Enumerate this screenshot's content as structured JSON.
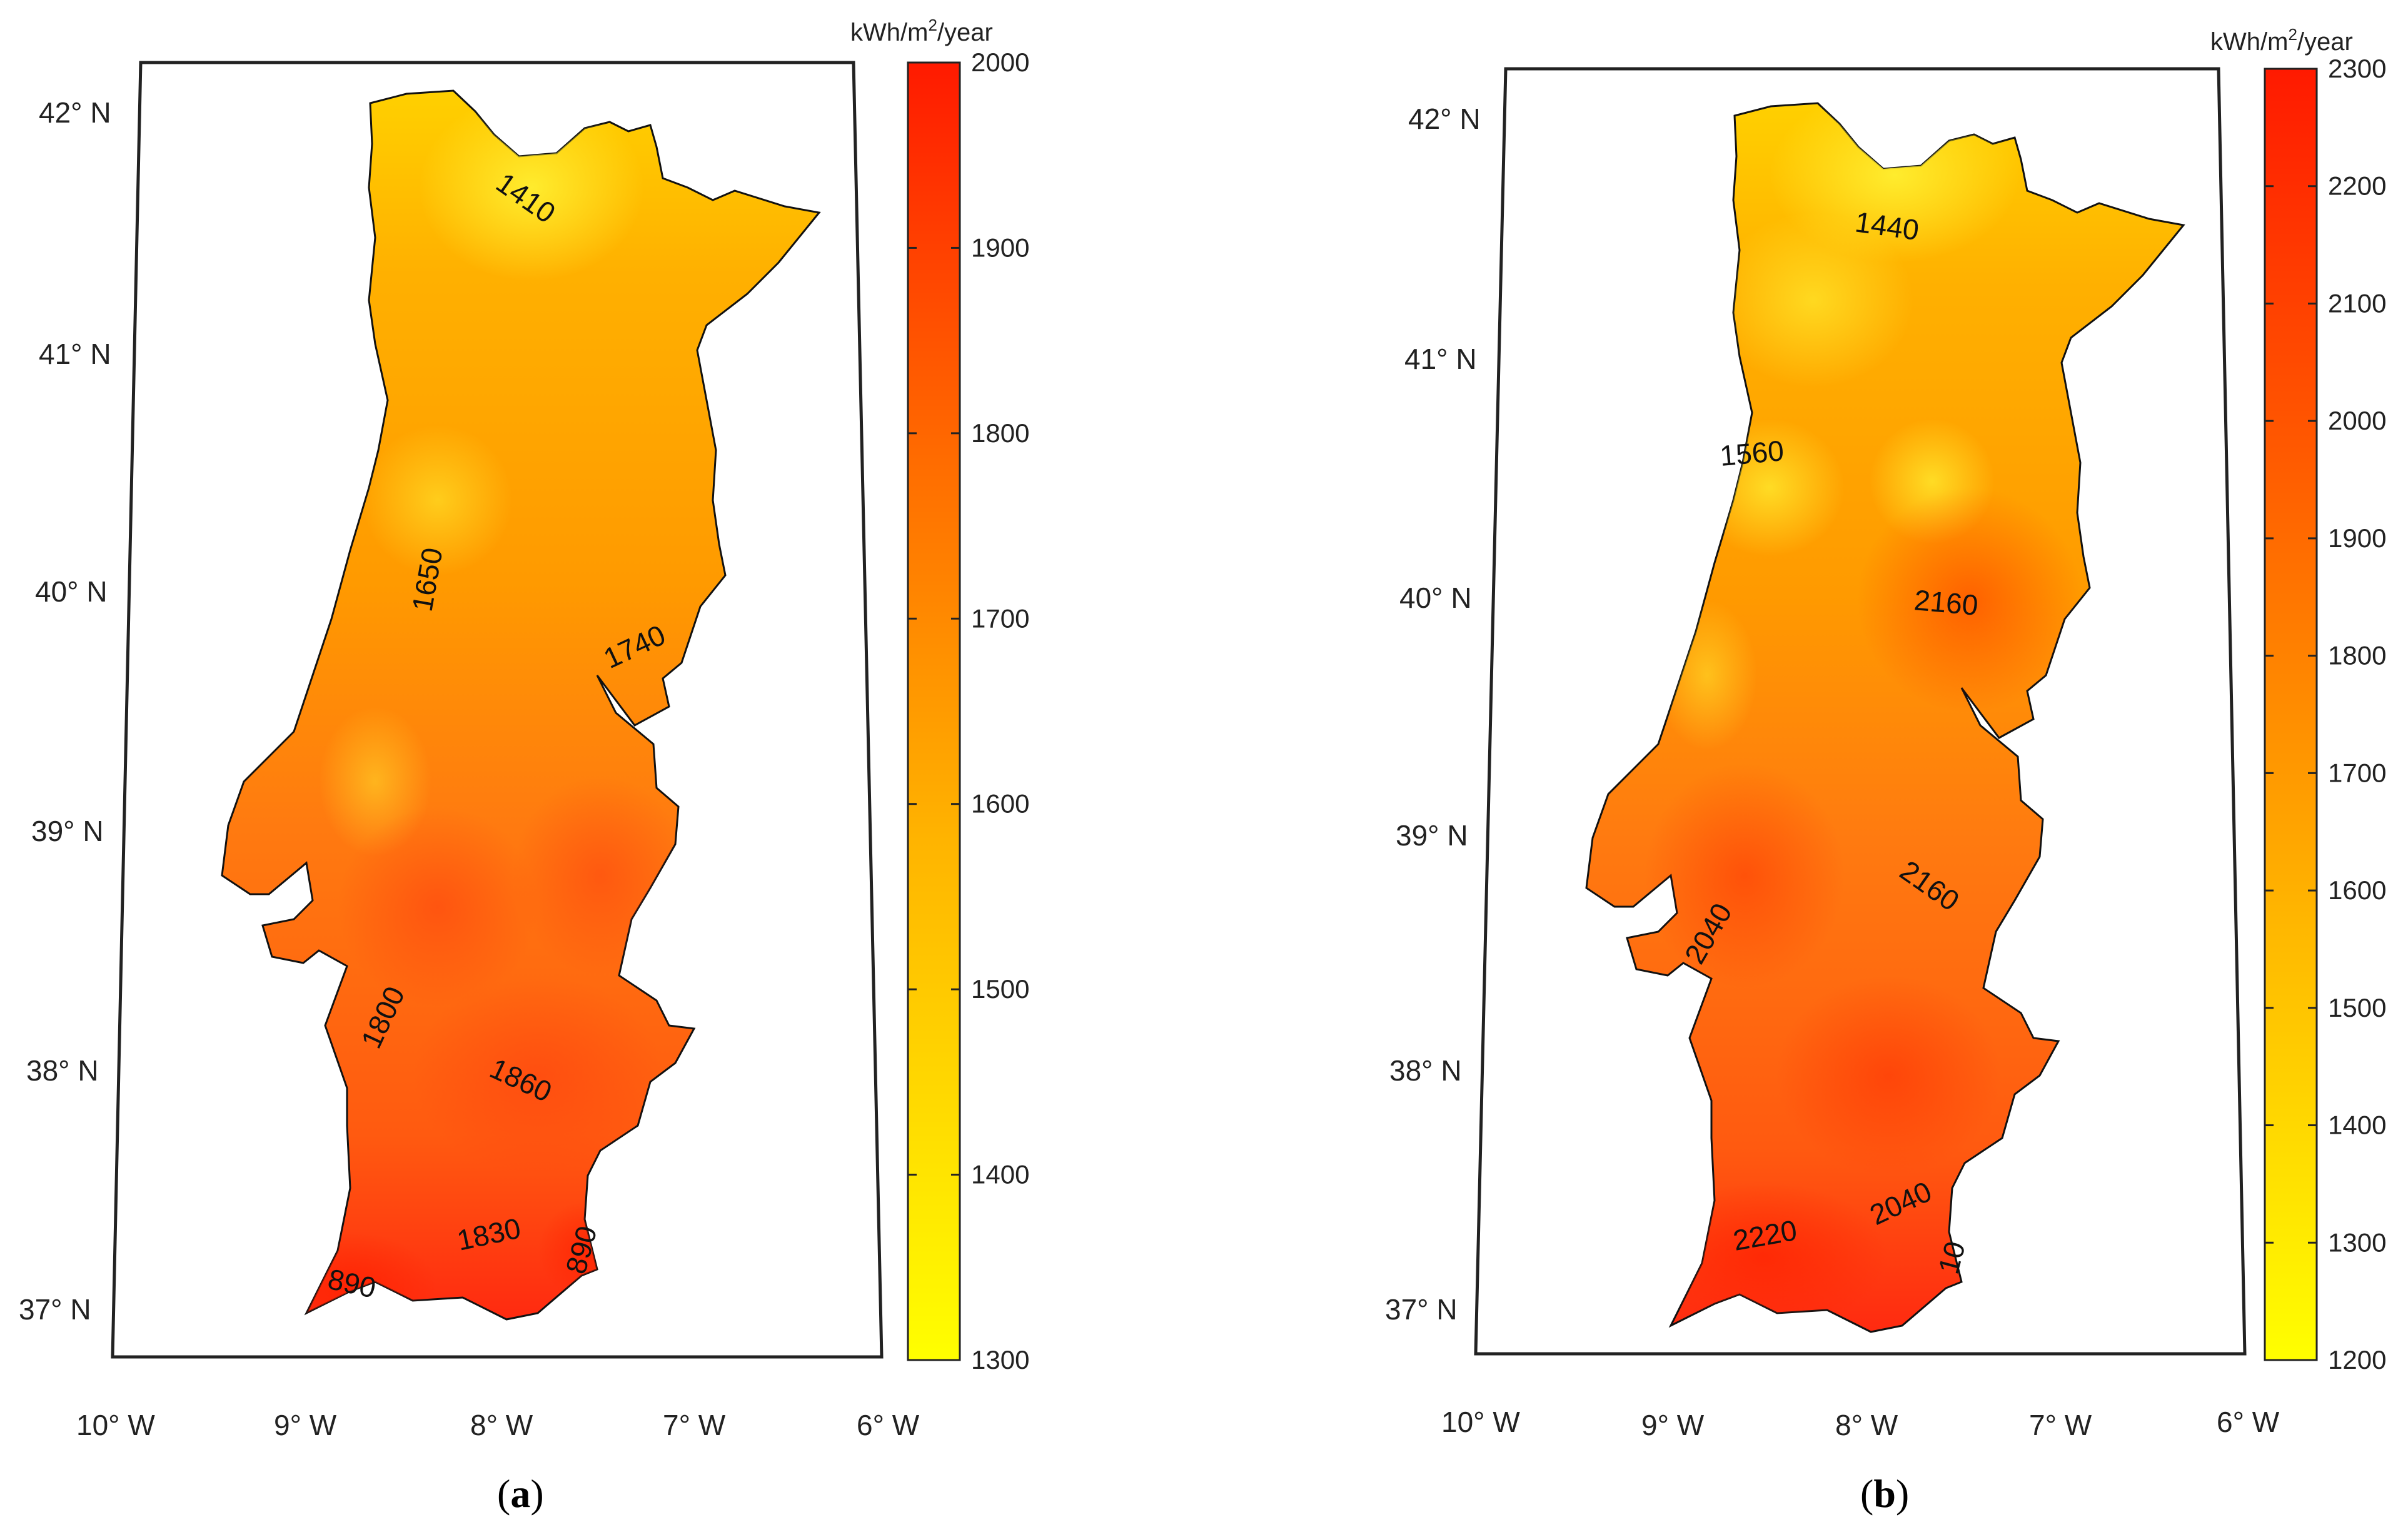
{
  "colors": {
    "low": "#ffff00",
    "high": "#ff1a00",
    "outline": "#111111"
  },
  "panels": [
    {
      "caption_letter": "a",
      "colorbar": {
        "unit_prefix": "kWh/m",
        "unit_sup": "2",
        "unit_suffix": "/year",
        "min": 1300,
        "max": 2000,
        "ticks": [
          "2000",
          "1900",
          "1800",
          "1700",
          "1600",
          "1500",
          "1400",
          "1300"
        ]
      },
      "lat_labels": [
        "42° N",
        "41° N",
        "40° N",
        "39° N",
        "38° N",
        "37° N"
      ],
      "lon_labels": [
        "10° W",
        "9° W",
        "8° W",
        "7° W",
        "6° W"
      ],
      "contour_labels": [
        "1410",
        "1650",
        "1740",
        "1800",
        "1860",
        "1830",
        "890",
        "890"
      ]
    },
    {
      "caption_letter": "b",
      "colorbar": {
        "unit_prefix": "kWh/m",
        "unit_sup": "2",
        "unit_suffix": "/year",
        "min": 1200,
        "max": 2300,
        "ticks": [
          "2300",
          "2200",
          "2100",
          "2000",
          "1900",
          "1800",
          "1700",
          "1600",
          "1500",
          "1400",
          "1300",
          "1200"
        ]
      },
      "lat_labels": [
        "42° N",
        "41° N",
        "40° N",
        "39° N",
        "38° N",
        "37° N"
      ],
      "lon_labels": [
        "10° W",
        "9° W",
        "8° W",
        "7° W",
        "6° W"
      ],
      "contour_labels": [
        "1440",
        "1560",
        "2160",
        "2160",
        "2040",
        "2220",
        "2040",
        "10"
      ]
    }
  ]
}
